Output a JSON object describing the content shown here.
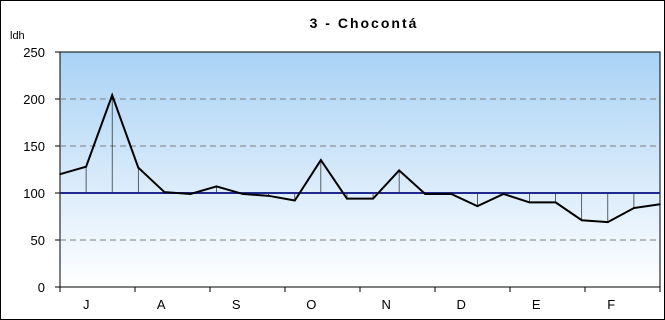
{
  "chart_data": {
    "type": "line",
    "title": "3 - Chocontá",
    "ylabel": "ldh",
    "xlabel": "",
    "ylim": [
      0,
      250
    ],
    "yticks": [
      0,
      50,
      100,
      150,
      200,
      250
    ],
    "grid": true,
    "reference_line": 100,
    "month_labels": [
      "J",
      "A",
      "S",
      "O",
      "N",
      "D",
      "E",
      "F"
    ],
    "series": [
      {
        "values": [
          120,
          128,
          204,
          127,
          101,
          99,
          107,
          99,
          97,
          92,
          135,
          94,
          94,
          124,
          99,
          99,
          86,
          99,
          90,
          90,
          71,
          69,
          84,
          88
        ]
      }
    ],
    "colors": {
      "series": "#000000",
      "reference": "#1f2a8c",
      "plot_top": "#a9d2f5",
      "plot_bottom": "#ffffff",
      "grid": "#7f7f7f"
    }
  }
}
